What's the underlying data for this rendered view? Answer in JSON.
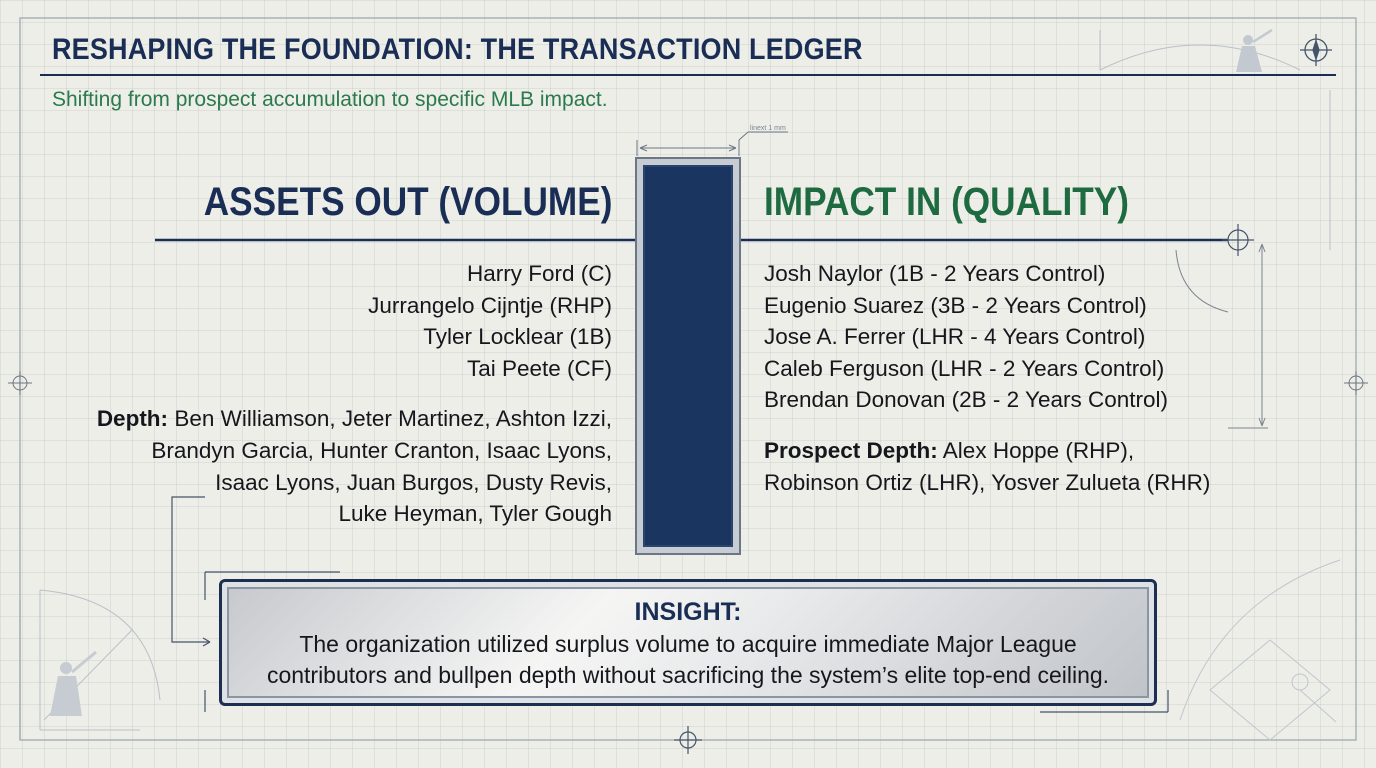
{
  "title": "RESHAPING THE FOUNDATION: THE TRANSACTION LEDGER",
  "subtitle": "Shifting from prospect accumulation to specific MLB impact.",
  "dimension_label": "linext 1 mm",
  "assets_out": {
    "heading": "ASSETS OUT (VOLUME)",
    "players": [
      "Harry Ford (C)",
      "Jurrangelo Cijntje (RHP)",
      "Tyler Locklear (1B)",
      "Tai Peete (CF)"
    ],
    "depth_label": "Depth:",
    "depth_lines": [
      "Ben Williamson, Jeter Martinez, Ashton Izzi,",
      "Brandyn Garcia, Hunter Cranton, Isaac Lyons,",
      "Isaac Lyons, Juan Burgos, Dusty Revis,",
      "Luke Heyman, Tyler Gough"
    ]
  },
  "impact_in": {
    "heading": "IMPACT IN (QUALITY)",
    "players": [
      "Josh Naylor (1B - 2 Years Control)",
      "Eugenio Suarez (3B - 2 Years Control)",
      "Jose A. Ferrer (LHR - 4 Years Control)",
      "Caleb Ferguson (LHR - 2 Years Control)",
      "Brendan Donovan (2B - 2 Years Control)"
    ],
    "prospect_label": "Prospect Depth:",
    "prospect_lines": [
      "Alex Hoppe (RHP),",
      "Robinson Ortiz (LHR), Yosver Zulueta (RHR)"
    ]
  },
  "insight": {
    "title": "INSIGHT:",
    "lines": [
      "The organization utilized surplus volume to acquire immediate Major League",
      "contributors and bullpen depth without sacrificing the system’s elite top-end ceiling."
    ]
  },
  "colors": {
    "navy": "#1a2e55",
    "green": "#1e6b42",
    "pillar": "#1a355f"
  }
}
